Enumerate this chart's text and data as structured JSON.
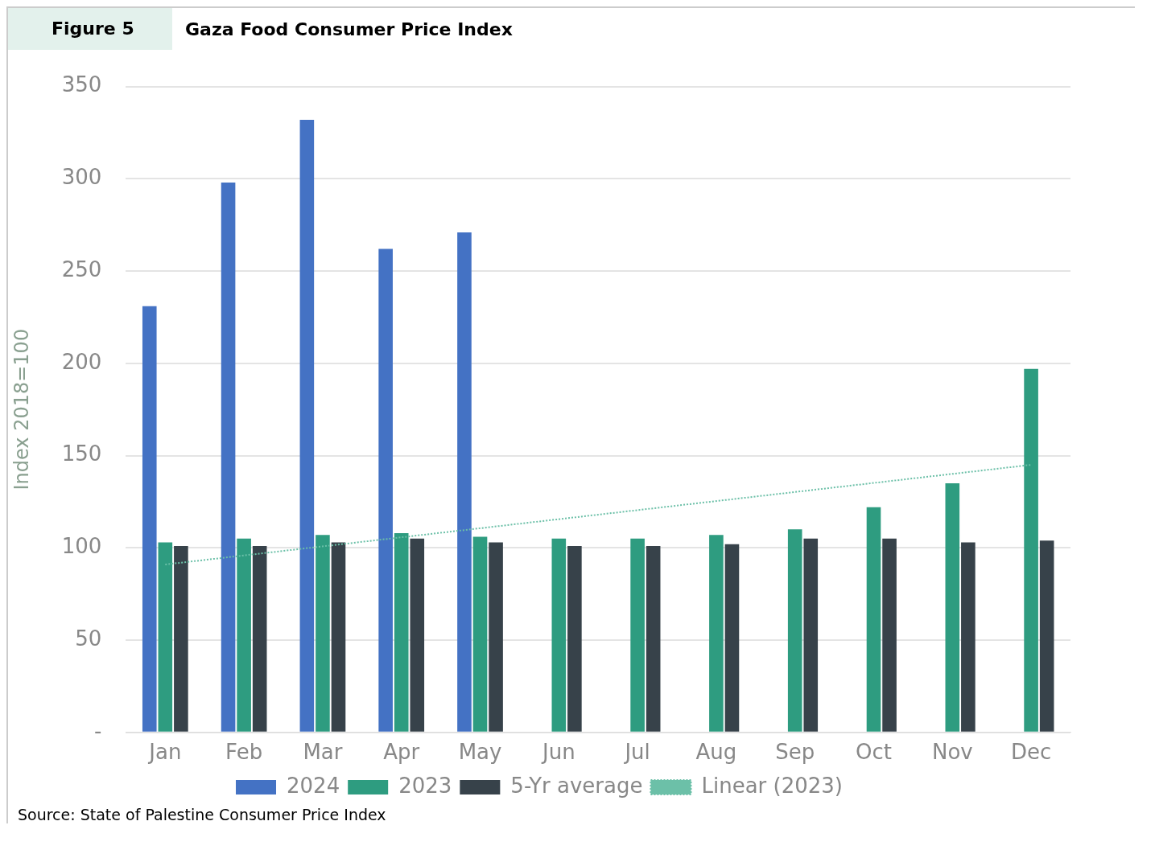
{
  "chart_data": {
    "type": "bar",
    "title": "Gaza Food Consumer Price Index",
    "ylabel": "Index 2018=100",
    "annotations": [
      "Figure 5",
      "Source: State of Palestine Consumer Price Index"
    ],
    "categories": [
      "Jan",
      "Feb",
      "Mar",
      "Apr",
      "May",
      "Jun",
      "Jul",
      "Aug",
      "Sep",
      "Oct",
      "Nov",
      "Dec"
    ],
    "series": [
      {
        "name": "2024",
        "color": "#4472c4",
        "values": [
          231,
          298,
          332,
          262,
          271,
          null,
          null,
          null,
          null,
          null,
          null,
          null
        ]
      },
      {
        "name": "2023",
        "color": "#2e9c80",
        "values": [
          103,
          105,
          107,
          108,
          106,
          105,
          105,
          107,
          110,
          122,
          135,
          197
        ]
      },
      {
        "name": "5-Yr average",
        "color": "#37424a",
        "values": [
          101,
          101,
          103,
          105,
          103,
          101,
          101,
          102,
          105,
          105,
          103,
          104
        ]
      },
      {
        "name": "Linear (2023)",
        "type": "line",
        "line_style": "dotted",
        "color": "#6cc0a8",
        "values": [
          91,
          null,
          null,
          null,
          null,
          null,
          null,
          null,
          null,
          null,
          null,
          145
        ]
      }
    ],
    "ylim": [
      0,
      350
    ],
    "yticks": [
      {
        "value": 0,
        "label": "-"
      },
      50,
      100,
      150,
      200,
      250,
      300,
      350
    ],
    "grid": "y",
    "legend": "bottom"
  }
}
